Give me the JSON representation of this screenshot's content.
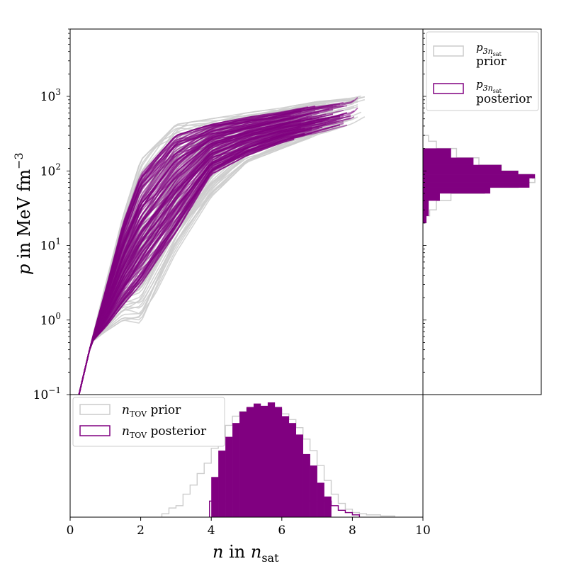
{
  "chart_data": [
    {
      "panel": "main",
      "type": "line",
      "xlabel": "n in n_sat",
      "ylabel": "p in MeV fm^-3",
      "xlim": [
        0,
        10
      ],
      "ylim": [
        0.1,
        8000
      ],
      "yscale": "log",
      "x_ticks": [
        0,
        2,
        4,
        6,
        8,
        10
      ],
      "x_tick_labels": [
        "0",
        "2",
        "4",
        "6",
        "8",
        "10"
      ],
      "y_ticks": [
        0.1,
        1,
        10,
        100,
        1000
      ],
      "y_tick_labels": [
        "10",
        "10",
        "10",
        "10",
        "10"
      ],
      "y_tick_exponents": [
        "−1",
        "0",
        "1",
        "2",
        "3"
      ],
      "series": [
        {
          "name": "prior",
          "color": "#cccccc",
          "envelope": {
            "x": [
              0.25,
              0.6,
              1.0,
              1.5,
              2.0,
              3.0,
              4.0,
              5.0,
              6.0,
              7.0,
              8.0,
              8.4
            ],
            "p_low": [
              0.1,
              0.5,
              0.7,
              1.0,
              0.9,
              8,
              45,
              130,
              200,
              300,
              430,
              550
            ],
            "p_high": [
              0.1,
              0.5,
              3,
              25,
              140,
              420,
              500,
              600,
              700,
              850,
              950,
              1050
            ]
          }
        },
        {
          "name": "posterior",
          "color": "#800080",
          "envelope": {
            "x": [
              0.25,
              0.6,
              1.0,
              1.5,
              2.0,
              3.0,
              4.0,
              5.0,
              6.0,
              7.0,
              8.0,
              8.2
            ],
            "p_low": [
              0.1,
              0.5,
              0.8,
              1.6,
              3.0,
              15,
              90,
              160,
              240,
              320,
              430,
              520
            ],
            "p_high": [
              0.1,
              0.5,
              2.5,
              20,
              90,
              300,
              420,
              520,
              620,
              760,
              900,
              1100
            ]
          }
        }
      ]
    },
    {
      "panel": "right",
      "type": "histogram",
      "orientation": "horizontal",
      "variable": "p_3nsat",
      "yscale": "log",
      "series": [
        {
          "name": "prior",
          "style": "step",
          "color": "#cccccc",
          "p_bins": [
            20,
            25,
            30,
            40,
            50,
            60,
            70,
            80,
            90,
            100,
            120,
            150,
            200,
            250,
            300
          ],
          "density": [
            0.02,
            0.06,
            0.12,
            0.25,
            0.55,
            0.85,
            1.0,
            0.98,
            0.85,
            0.7,
            0.5,
            0.3,
            0.12,
            0.05,
            0.02
          ]
        },
        {
          "name": "posterior",
          "style": "filled",
          "color": "#800080",
          "p_bins": [
            20,
            25,
            30,
            40,
            50,
            60,
            70,
            80,
            90,
            100,
            120,
            150,
            200
          ],
          "density": [
            0.03,
            0.05,
            0.05,
            0.15,
            0.6,
            0.95,
            0.95,
            1.0,
            0.85,
            0.7,
            0.45,
            0.25,
            0.05
          ]
        }
      ],
      "legend": {
        "position": "top-right",
        "entries": [
          {
            "label": "prior",
            "symbol": "p",
            "subscript": "3n",
            "subsub": "sat"
          },
          {
            "label": "posterior",
            "symbol": "p",
            "subscript": "3n",
            "subsub": "sat"
          }
        ]
      }
    },
    {
      "panel": "bottom",
      "type": "histogram",
      "orientation": "vertical",
      "variable": "n_TOV",
      "series": [
        {
          "name": "prior",
          "style": "step",
          "color": "#cccccc",
          "x_edges": [
            2.6,
            2.8,
            3.0,
            3.2,
            3.4,
            3.6,
            3.8,
            4.0,
            4.2,
            4.4,
            4.6,
            4.8,
            5.0,
            5.2,
            5.4,
            5.6,
            5.8,
            6.0,
            6.2,
            6.4,
            6.6,
            6.8,
            7.0,
            7.2,
            7.4,
            7.6,
            7.8,
            8.0,
            8.2,
            8.4,
            8.6,
            8.8,
            9.0,
            9.2
          ],
          "counts": [
            0.03,
            0.08,
            0.1,
            0.2,
            0.28,
            0.38,
            0.47,
            0.6,
            0.7,
            0.8,
            0.88,
            0.92,
            0.95,
            0.93,
            0.96,
            0.92,
            0.94,
            0.9,
            0.85,
            0.78,
            0.68,
            0.58,
            0.45,
            0.32,
            0.2,
            0.12,
            0.07,
            0.04,
            0.03,
            0.02,
            0.02,
            0.01,
            0.01
          ]
        },
        {
          "name": "posterior",
          "style": "filled",
          "color": "#800080",
          "x_edges": [
            4.0,
            4.2,
            4.4,
            4.6,
            4.8,
            5.0,
            5.2,
            5.4,
            5.6,
            5.8,
            6.0,
            6.2,
            6.4,
            6.6,
            6.8,
            7.0,
            7.2,
            7.4
          ],
          "counts": [
            0.35,
            0.58,
            0.7,
            0.82,
            0.92,
            0.96,
            0.99,
            0.97,
            1.0,
            0.96,
            0.88,
            0.82,
            0.72,
            0.55,
            0.45,
            0.3,
            0.18
          ]
        },
        {
          "name": "posterior-tail",
          "style": "step",
          "color": "#800080",
          "x_edges": [
            3.95,
            4.0,
            7.4,
            7.6,
            7.8,
            8.0,
            8.2
          ],
          "counts": [
            0.14,
            0.14,
            0.1,
            0.06,
            0.04,
            0.02,
            0.0
          ]
        }
      ],
      "legend": {
        "position": "top-left",
        "entries": [
          {
            "label": "prior",
            "symbol": "n",
            "subscript": "TOV"
          },
          {
            "label": "posterior",
            "symbol": "n",
            "subscript": "TOV"
          }
        ]
      }
    }
  ],
  "axis_labels": {
    "x_symbol": "n",
    "x_mid": " in ",
    "x_sub_symbol": "n",
    "x_sub": "sat",
    "y_symbol": "p",
    "y_mid": " in MeV fm",
    "y_exp": "−3"
  }
}
